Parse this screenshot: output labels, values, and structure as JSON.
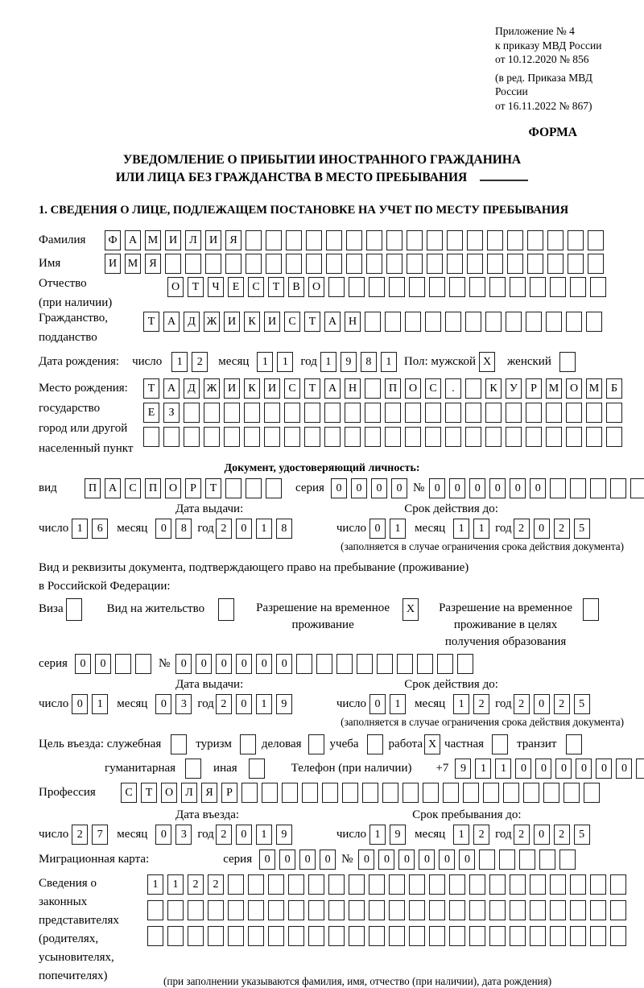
{
  "header": {
    "appendix": [
      "Приложение № 4",
      "к приказу МВД России",
      "от 10.12.2020 № 856"
    ],
    "edition": [
      "(в ред. Приказа МВД России",
      "от 16.11.2022 № 867)"
    ],
    "form_label": "ФОРМА"
  },
  "title": {
    "line1": "УВЕДОМЛЕНИЕ О ПРИБЫТИИ ИНОСТРАННОГО ГРАЖДАНИНА",
    "line2": "ИЛИ ЛИЦА БЕЗ ГРАЖДАНСТВА В МЕСТО ПРЕБЫВАНИЯ"
  },
  "section1_heading": "1. СВЕДЕНИЯ О ЛИЦЕ, ПОДЛЕЖАЩЕМ ПОСТАНОВКЕ НА УЧЕТ ПО МЕСТУ ПРЕБЫВАНИЯ",
  "labels": {
    "surname": "Фамилия",
    "firstname": "Имя",
    "patronymic": [
      "Отчество",
      "(при наличии)"
    ],
    "citizenship": [
      "Гражданство,",
      "подданство"
    ],
    "birth_date": "Дата рождения:",
    "day": "число",
    "month": "месяц",
    "year": "год",
    "sex_male": "Пол: мужской",
    "sex_female": "женский",
    "birthplace": [
      "Место рождения:",
      "государство",
      "город или другой",
      "населенный пункт"
    ],
    "identity_doc_heading": "Документ, удостоверяющий личность:",
    "doc_kind": "вид",
    "series": "серия",
    "number_sign": "№",
    "issue_date": "Дата выдачи:",
    "expiry_date": "Срок действия до:",
    "expiry_note": "(заполняется в случае ограничения срока действия документа)",
    "permit_para": [
      "Вид и реквизиты документа, подтверждающего право на пребывание (проживание)",
      "в Российской Федерации:"
    ],
    "visa": "Виза",
    "residence_permit": "Вид на жительство",
    "temp_residence": [
      "Разрешение на временное",
      "проживание"
    ],
    "temp_residence_edu": [
      "Разрешение на временное",
      "проживание в целях",
      "получения образования"
    ],
    "purpose": "Цель въезда: служебная",
    "tourism": "туризм",
    "business": "деловая",
    "study": "учеба",
    "work": "работа",
    "private": "частная",
    "transit": "транзит",
    "humanitarian": "гуманитарная",
    "other": "иная",
    "phone": "Телефон (при наличии)",
    "phone_prefix": "+7",
    "profession": "Профессия",
    "entry_date": "Дата въезда:",
    "stay_until": "Срок пребывания до:",
    "migration_card": "Миграционная карта:",
    "guardians": [
      "Сведения о",
      "законных",
      "представителях",
      "(родителях,",
      "усыновителях,",
      "попечителях)"
    ],
    "guardians_note": "(при заполнении указываются фамилия, имя, отчество (при наличии), дата рождения)"
  },
  "boxes": {
    "surname": {
      "v": "ФАМИЛИЯ",
      "n": 25
    },
    "firstname": {
      "v": "ИМЯ",
      "n": 25
    },
    "patronymic": {
      "v": "ОТЧЕСТВО",
      "n": 22
    },
    "citizenship": {
      "v": "ТАДЖИКИСТАН",
      "n": 23
    },
    "birth_day": {
      "v": "12",
      "n": 2
    },
    "birth_month": {
      "v": "11",
      "n": 2
    },
    "birth_year": {
      "v": "1981",
      "n": 4
    },
    "birthplace_row1": {
      "v": "ТАДЖИКИСТАН ПОС. КУРМОМБ",
      "n": 24
    },
    "birthplace_row2": {
      "v": "ЕЗ",
      "n": 24
    },
    "birthplace_row3": {
      "v": "",
      "n": 24
    },
    "doc_kind": {
      "v": "ПАСПОРТ",
      "n": 10
    },
    "doc_series": {
      "v": "0000",
      "n": 4
    },
    "doc_number": {
      "v": "000000",
      "n": 11
    },
    "doc_issue_day": {
      "v": "16",
      "n": 2
    },
    "doc_issue_month": {
      "v": "08",
      "n": 2
    },
    "doc_issue_year": {
      "v": "2018",
      "n": 4
    },
    "doc_expiry_day": {
      "v": "01",
      "n": 2
    },
    "doc_expiry_month": {
      "v": "11",
      "n": 2
    },
    "doc_expiry_year": {
      "v": "2025",
      "n": 4
    },
    "permit_series": {
      "v": "00",
      "n": 4
    },
    "permit_number": {
      "v": "000000",
      "n": 15
    },
    "permit_issue_day": {
      "v": "01",
      "n": 2
    },
    "permit_issue_month": {
      "v": "03",
      "n": 2
    },
    "permit_issue_year": {
      "v": "2019",
      "n": 4
    },
    "permit_expiry_day": {
      "v": "01",
      "n": 2
    },
    "permit_expiry_month": {
      "v": "12",
      "n": 2
    },
    "permit_expiry_year": {
      "v": "2025",
      "n": 4
    },
    "phone": {
      "v": "911000000",
      "n": 10
    },
    "profession": {
      "v": "СТОЛЯР",
      "n": 24
    },
    "entry_day": {
      "v": "27",
      "n": 2
    },
    "entry_month": {
      "v": "03",
      "n": 2
    },
    "entry_year": {
      "v": "2019",
      "n": 4
    },
    "stay_day": {
      "v": "19",
      "n": 2
    },
    "stay_month": {
      "v": "12",
      "n": 2
    },
    "stay_year": {
      "v": "2025",
      "n": 4
    },
    "migr_series": {
      "v": "0000",
      "n": 4
    },
    "migr_number": {
      "v": "000000",
      "n": 11
    },
    "guardians_row1": {
      "v": "1122",
      "n": 24
    },
    "guardians_row2": {
      "v": "",
      "n": 24
    },
    "guardians_row3": {
      "v": "",
      "n": 24
    }
  },
  "checks": {
    "male": "X",
    "female": "",
    "visa": "",
    "residence_permit": "",
    "temp_residence": "X",
    "temp_residence_edu": "",
    "purpose_official": "",
    "purpose_tourism": "",
    "purpose_business": "",
    "purpose_study": "",
    "purpose_work": "X",
    "purpose_private": "",
    "purpose_transit": "",
    "purpose_humanitarian": "",
    "purpose_other": ""
  },
  "colors": {
    "ink": "#000000",
    "box_border": "#1c1c1c"
  }
}
